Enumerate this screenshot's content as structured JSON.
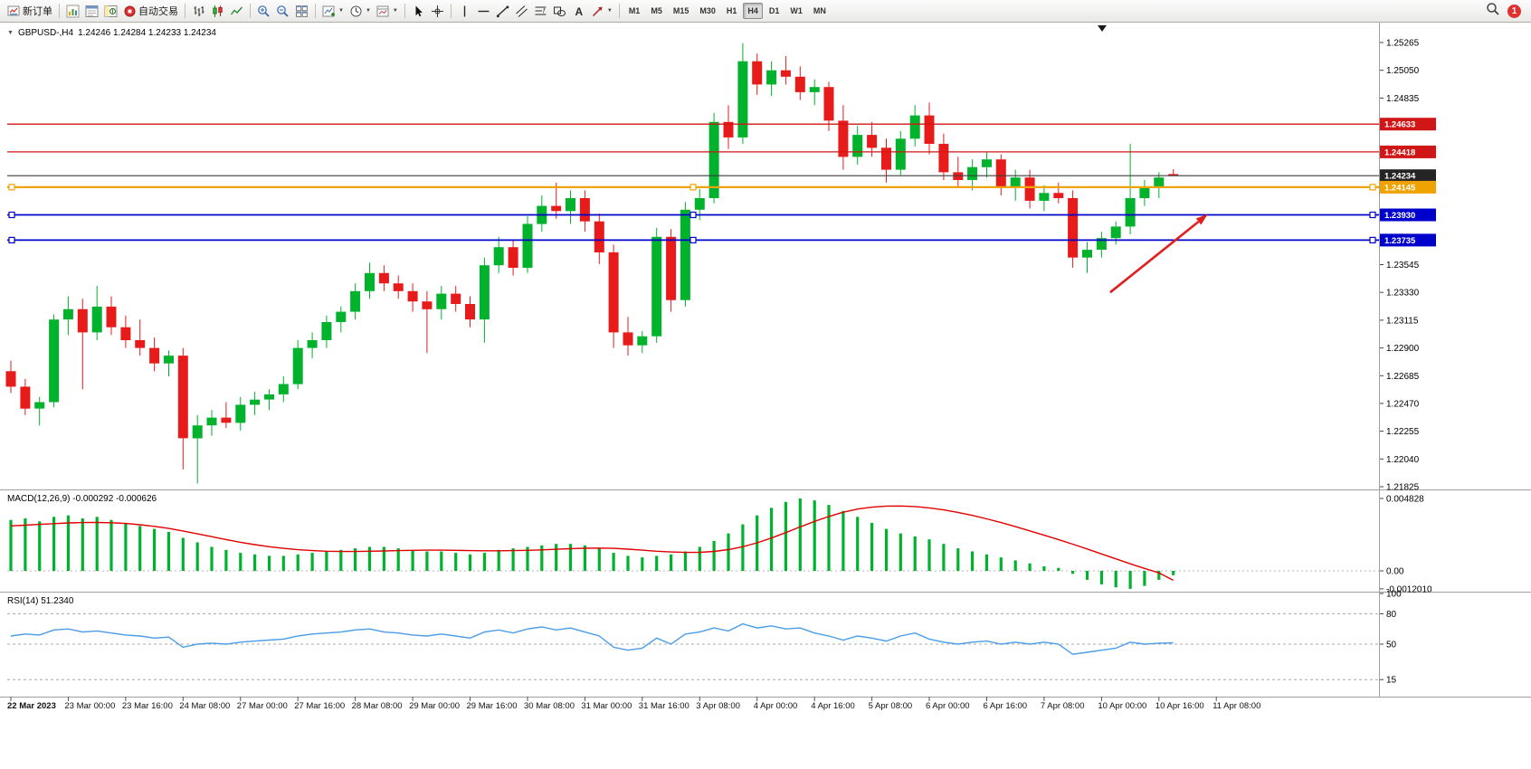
{
  "toolbar": {
    "buttons": [
      {
        "name": "new-order-button",
        "icon": "new-order-icon",
        "label": "新订单"
      },
      {
        "name": "separator"
      },
      {
        "name": "market-watch-button",
        "icon": "market-watch-icon"
      },
      {
        "name": "data-window-button",
        "icon": "data-window-icon"
      },
      {
        "name": "navigator-button",
        "icon": "navigator-icon"
      },
      {
        "name": "autotrading-button",
        "icon": "autotrading-icon",
        "label": "自动交易"
      },
      {
        "name": "separator"
      },
      {
        "name": "bar-chart-button",
        "icon": "bar-chart-icon"
      },
      {
        "name": "candlestick-chart-button",
        "icon": "candlestick-chart-icon"
      },
      {
        "name": "line-chart-button",
        "icon": "line-chart-icon"
      },
      {
        "name": "separator"
      },
      {
        "name": "zoom-in-button",
        "icon": "zoom-in-icon"
      },
      {
        "name": "zoom-out-button",
        "icon": "zoom-out-icon"
      },
      {
        "name": "tile-windows-button",
        "icon": "tile-windows-icon"
      },
      {
        "name": "separator"
      },
      {
        "name": "indicators-button",
        "icon": "indicators-icon",
        "dropdown": true
      },
      {
        "name": "periods-button",
        "icon": "period-icon",
        "dropdown": true
      },
      {
        "name": "templates-button",
        "icon": "template-icon",
        "dropdown": true
      },
      {
        "name": "separator"
      },
      {
        "name": "cursor-button",
        "icon": "cursor-icon"
      },
      {
        "name": "crosshair-button",
        "icon": "crosshair-icon"
      },
      {
        "name": "separator"
      },
      {
        "name": "vertical-line-button",
        "icon": "vertical-line-icon"
      },
      {
        "name": "horizontal-line-button",
        "icon": "horizontal-line-icon"
      },
      {
        "name": "trendline-button",
        "icon": "trendline-icon"
      },
      {
        "name": "channel-button",
        "icon": "channel-icon"
      },
      {
        "name": "fibonacci-button",
        "icon": "fibonacci-icon"
      },
      {
        "name": "shapes-button",
        "icon": "shapes-icon"
      },
      {
        "name": "text-button",
        "icon": "text-icon"
      },
      {
        "name": "arrows-button",
        "icon": "arrow-tool-icon",
        "dropdown": true
      },
      {
        "name": "separator"
      }
    ],
    "timeframes": {
      "items": [
        "M1",
        "M5",
        "M15",
        "M30",
        "H1",
        "H4",
        "D1",
        "W1",
        "MN"
      ],
      "active": "H4"
    },
    "right": {
      "search_icon": "search-icon",
      "notification_count": "1"
    }
  },
  "chart": {
    "title": {
      "symbol_period": "GBPUSD-,H4",
      "ohlc": "1.24246 1.24284 1.24233 1.24234"
    }
  },
  "chart_data": {
    "type": "candlestick",
    "symbol": "GBPUSD-",
    "timeframe": "H4",
    "current_ohlc": {
      "open": "1.24246",
      "high": "1.24284",
      "low": "1.24233",
      "close": "1.24234"
    },
    "colors": {
      "up": "#00b22c",
      "down": "#e81b1b",
      "macd_histogram": "#00b22c",
      "macd_signal": "#e00000",
      "rsi_line": "#4a9ce8",
      "red_line": "#d01616",
      "blue_line": "#0000cd",
      "orange_line": "#f0a300",
      "current_price_line": "#3c3c3c"
    },
    "bars_per_label": 4,
    "price_axis_ticks": [
      "1.25265",
      "1.25050",
      "1.24835",
      "1.23545",
      "1.23330",
      "1.23115",
      "1.22900",
      "1.22685",
      "1.22470",
      "1.22255",
      "1.22040",
      "1.21825"
    ],
    "time_labels": [
      "22 Mar 2023",
      "23 Mar 00:00",
      "23 Mar 16:00",
      "24 Mar 08:00",
      "27 Mar 00:00",
      "27 Mar 16:00",
      "28 Mar 08:00",
      "29 Mar 00:00",
      "29 Mar 16:00",
      "30 Mar 08:00",
      "31 Mar 00:00",
      "31 Mar 16:00",
      "3 Apr 08:00",
      "4 Apr 00:00",
      "4 Apr 16:00",
      "5 Apr 08:00",
      "6 Apr 00:00",
      "6 Apr 16:00",
      "7 Apr 08:00",
      "10 Apr 00:00",
      "10 Apr 16:00",
      "11 Apr 08:00"
    ],
    "hlines": [
      {
        "price": 1.24633,
        "label": "1.24633",
        "color": "#d01616",
        "width": 1.3
      },
      {
        "price": 1.24418,
        "label": "1.24418",
        "color": "#d01616",
        "width": 1.3
      },
      {
        "price": 1.24234,
        "label": "1.24234",
        "color": "#3c3c3c",
        "width": 1.1,
        "box_color": "#242424",
        "role": "current-price"
      },
      {
        "price": 1.24145,
        "label": "1.24145",
        "color": "#f0a300",
        "width": 2.2,
        "handles": true
      },
      {
        "price": 1.2393,
        "label": "1.23930",
        "color": "#0000cd",
        "width": 1.8,
        "handles": true
      },
      {
        "price": 1.23735,
        "label": "1.23735",
        "color": "#0000cd",
        "width": 1.8,
        "handles": true
      }
    ],
    "annotations": [
      {
        "type": "arrow",
        "color": "#e02020",
        "x1_bar": 76.6,
        "price1": 1.2333,
        "x2_bar": 83.4,
        "price2": 1.23935
      }
    ],
    "candles": [
      [
        1.2272,
        1.228,
        1.2255,
        1.226
      ],
      [
        1.226,
        1.2266,
        1.2238,
        1.2243
      ],
      [
        1.2243,
        1.2252,
        1.223,
        1.2248
      ],
      [
        1.2248,
        1.2316,
        1.2244,
        1.2312
      ],
      [
        1.2312,
        1.233,
        1.23,
        1.232
      ],
      [
        1.232,
        1.2328,
        1.2258,
        1.2302
      ],
      [
        1.2302,
        1.2338,
        1.2296,
        1.2322
      ],
      [
        1.2322,
        1.233,
        1.23,
        1.2306
      ],
      [
        1.2306,
        1.2315,
        1.229,
        1.2296
      ],
      [
        1.2296,
        1.2312,
        1.2284,
        1.229
      ],
      [
        1.229,
        1.2298,
        1.2272,
        1.2278
      ],
      [
        1.2278,
        1.2288,
        1.2268,
        1.2284
      ],
      [
        1.2284,
        1.229,
        1.2196,
        1.222
      ],
      [
        1.222,
        1.2238,
        1.2185,
        1.223
      ],
      [
        1.223,
        1.2242,
        1.2222,
        1.2236
      ],
      [
        1.2236,
        1.2248,
        1.2228,
        1.2232
      ],
      [
        1.2232,
        1.2252,
        1.2226,
        1.2246
      ],
      [
        1.2246,
        1.2256,
        1.2238,
        1.225
      ],
      [
        1.225,
        1.2258,
        1.2242,
        1.2254
      ],
      [
        1.2254,
        1.2268,
        1.2248,
        1.2262
      ],
      [
        1.2262,
        1.2296,
        1.2258,
        1.229
      ],
      [
        1.229,
        1.2302,
        1.2282,
        1.2296
      ],
      [
        1.2296,
        1.2315,
        1.229,
        1.231
      ],
      [
        1.231,
        1.2322,
        1.2302,
        1.2318
      ],
      [
        1.2318,
        1.234,
        1.2312,
        1.2334
      ],
      [
        1.2334,
        1.2356,
        1.2328,
        1.2348
      ],
      [
        1.2348,
        1.2354,
        1.2334,
        1.234
      ],
      [
        1.234,
        1.2346,
        1.2328,
        1.2334
      ],
      [
        1.2334,
        1.234,
        1.2318,
        1.2326
      ],
      [
        1.2326,
        1.2334,
        1.2286,
        1.232
      ],
      [
        1.232,
        1.2338,
        1.2312,
        1.2332
      ],
      [
        1.2332,
        1.2338,
        1.2318,
        1.2324
      ],
      [
        1.2324,
        1.233,
        1.2306,
        1.2312
      ],
      [
        1.2312,
        1.236,
        1.2294,
        1.2354
      ],
      [
        1.2354,
        1.2376,
        1.2348,
        1.2368
      ],
      [
        1.2368,
        1.2374,
        1.2346,
        1.2352
      ],
      [
        1.2352,
        1.2392,
        1.2348,
        1.2386
      ],
      [
        1.2386,
        1.2408,
        1.238,
        1.24
      ],
      [
        1.24,
        1.2418,
        1.239,
        1.2396
      ],
      [
        1.2396,
        1.2412,
        1.2386,
        1.2406
      ],
      [
        1.2406,
        1.2412,
        1.238,
        1.2388
      ],
      [
        1.2388,
        1.2394,
        1.2355,
        1.2364
      ],
      [
        1.2364,
        1.237,
        1.229,
        1.2302
      ],
      [
        1.2302,
        1.2314,
        1.2284,
        1.2292
      ],
      [
        1.2292,
        1.2303,
        1.2286,
        1.2299
      ],
      [
        1.2299,
        1.2383,
        1.2294,
        1.2376
      ],
      [
        1.2376,
        1.2382,
        1.2318,
        1.2327
      ],
      [
        1.2327,
        1.2403,
        1.2322,
        1.2397
      ],
      [
        1.2397,
        1.2413,
        1.2389,
        1.2406
      ],
      [
        1.2406,
        1.2472,
        1.2402,
        1.2465
      ],
      [
        1.2465,
        1.2478,
        1.2444,
        1.2453
      ],
      [
        1.2453,
        1.2526,
        1.2448,
        1.2512
      ],
      [
        1.2512,
        1.2518,
        1.2486,
        1.2494
      ],
      [
        1.2494,
        1.2512,
        1.2485,
        1.2505
      ],
      [
        1.2505,
        1.2516,
        1.2494,
        1.25
      ],
      [
        1.25,
        1.2508,
        1.2482,
        1.2488
      ],
      [
        1.2488,
        1.2498,
        1.2478,
        1.2492
      ],
      [
        1.2492,
        1.2496,
        1.2458,
        1.2466
      ],
      [
        1.2466,
        1.2478,
        1.2428,
        1.2438
      ],
      [
        1.2438,
        1.2462,
        1.2432,
        1.2455
      ],
      [
        1.2455,
        1.2465,
        1.2438,
        1.2445
      ],
      [
        1.2445,
        1.2452,
        1.2418,
        1.2428
      ],
      [
        1.2428,
        1.2458,
        1.2424,
        1.2452
      ],
      [
        1.2452,
        1.2478,
        1.2446,
        1.247
      ],
      [
        1.247,
        1.248,
        1.244,
        1.2448
      ],
      [
        1.2448,
        1.2456,
        1.242,
        1.2426
      ],
      [
        1.2426,
        1.2438,
        1.2414,
        1.242
      ],
      [
        1.242,
        1.2436,
        1.2412,
        1.243
      ],
      [
        1.243,
        1.2442,
        1.2422,
        1.2436
      ],
      [
        1.2436,
        1.244,
        1.2408,
        1.2414
      ],
      [
        1.2414,
        1.2428,
        1.2404,
        1.2422
      ],
      [
        1.2422,
        1.2428,
        1.2398,
        1.2404
      ],
      [
        1.2404,
        1.2416,
        1.2396,
        1.241
      ],
      [
        1.241,
        1.2418,
        1.2402,
        1.2406
      ],
      [
        1.2406,
        1.2412,
        1.2352,
        1.236
      ],
      [
        1.236,
        1.2372,
        1.2348,
        1.2366
      ],
      [
        1.2366,
        1.238,
        1.236,
        1.2375
      ],
      [
        1.2375,
        1.2388,
        1.237,
        1.2384
      ],
      [
        1.2384,
        1.2448,
        1.2378,
        1.2406
      ],
      [
        1.2406,
        1.242,
        1.24,
        1.2414
      ],
      [
        1.2414,
        1.2426,
        1.2406,
        1.2422
      ],
      [
        1.24246,
        1.24284,
        1.24233,
        1.24234
      ]
    ],
    "indicators": [
      {
        "name": "MACD",
        "params": "12,26,9",
        "label": "MACD(12,26,9) -0.000292 -0.000626",
        "main_value": "-0.000292",
        "signal_value": "-0.000626",
        "axis_ticks": [
          "0.004828",
          "0.00",
          "-0.0012010"
        ],
        "range": {
          "max": 0.004828,
          "min": -0.001201
        },
        "histogram": [
          0.0034,
          0.0035,
          0.0033,
          0.0036,
          0.0037,
          0.0035,
          0.0036,
          0.0034,
          0.0032,
          0.003,
          0.0028,
          0.0026,
          0.0022,
          0.0019,
          0.0016,
          0.0014,
          0.0012,
          0.0011,
          0.001,
          0.001,
          0.0011,
          0.0012,
          0.0013,
          0.0014,
          0.0015,
          0.0016,
          0.0016,
          0.0015,
          0.0014,
          0.0013,
          0.0013,
          0.0012,
          0.0011,
          0.0012,
          0.0014,
          0.0015,
          0.0016,
          0.0017,
          0.0018,
          0.0018,
          0.0017,
          0.0015,
          0.0012,
          0.001,
          0.0009,
          0.001,
          0.0011,
          0.0013,
          0.0016,
          0.002,
          0.0025,
          0.0031,
          0.0037,
          0.0042,
          0.0046,
          0.00483,
          0.0047,
          0.0044,
          0.004,
          0.0036,
          0.0032,
          0.0028,
          0.0025,
          0.0023,
          0.0021,
          0.0018,
          0.0015,
          0.0013,
          0.0011,
          0.0009,
          0.0007,
          0.0005,
          0.0003,
          0.0002,
          -0.0002,
          -0.0006,
          -0.0009,
          -0.0011,
          -0.0012,
          -0.001,
          -0.0006,
          -0.000292
        ],
        "signal": [
          0.003,
          0.00305,
          0.0031,
          0.00315,
          0.0032,
          0.00322,
          0.00323,
          0.00321,
          0.00316,
          0.00308,
          0.00297,
          0.00283,
          0.00266,
          0.00247,
          0.00228,
          0.00209,
          0.00191,
          0.00175,
          0.00161,
          0.0015,
          0.00141,
          0.00135,
          0.00131,
          0.00129,
          0.00129,
          0.00131,
          0.00133,
          0.00135,
          0.00137,
          0.00138,
          0.00138,
          0.00137,
          0.00135,
          0.00134,
          0.00134,
          0.00135,
          0.00137,
          0.0014,
          0.00144,
          0.00148,
          0.00151,
          0.00152,
          0.0015,
          0.00145,
          0.00138,
          0.00131,
          0.00126,
          0.00123,
          0.00124,
          0.0013,
          0.00142,
          0.00161,
          0.00187,
          0.00219,
          0.00255,
          0.00293,
          0.0033,
          0.00363,
          0.00391,
          0.00412,
          0.00425,
          0.00432,
          0.00433,
          0.00429,
          0.0042,
          0.00407,
          0.0039,
          0.0037,
          0.00347,
          0.00322,
          0.00295,
          0.00267,
          0.00238,
          0.00209,
          0.00178,
          0.00146,
          0.00113,
          0.0008,
          0.00047,
          0.00016,
          -0.00013,
          -0.000626
        ]
      },
      {
        "name": "RSI",
        "params": "14",
        "label": "RSI(14) 51.2340",
        "value": "51.2340",
        "axis_ticks": [
          "100",
          "80",
          "50",
          "15"
        ],
        "levels": [
          80,
          50,
          15
        ],
        "range": {
          "max": 100,
          "min": 0
        },
        "values": [
          58,
          60,
          59,
          64,
          65,
          62,
          63,
          61,
          59,
          58,
          56,
          57,
          47,
          50,
          51,
          50,
          52,
          53,
          54,
          55,
          58,
          60,
          61,
          62,
          64,
          65,
          62,
          61,
          59,
          58,
          60,
          58,
          56,
          62,
          64,
          61,
          65,
          67,
          64,
          66,
          62,
          58,
          47,
          44,
          46,
          56,
          50,
          60,
          62,
          66,
          63,
          70,
          66,
          68,
          65,
          66,
          61,
          58,
          54,
          58,
          56,
          53,
          58,
          61,
          55,
          52,
          50,
          52,
          53,
          50,
          52,
          50,
          52,
          50,
          40,
          42,
          44,
          46,
          52,
          50,
          51,
          51.234
        ]
      }
    ]
  }
}
